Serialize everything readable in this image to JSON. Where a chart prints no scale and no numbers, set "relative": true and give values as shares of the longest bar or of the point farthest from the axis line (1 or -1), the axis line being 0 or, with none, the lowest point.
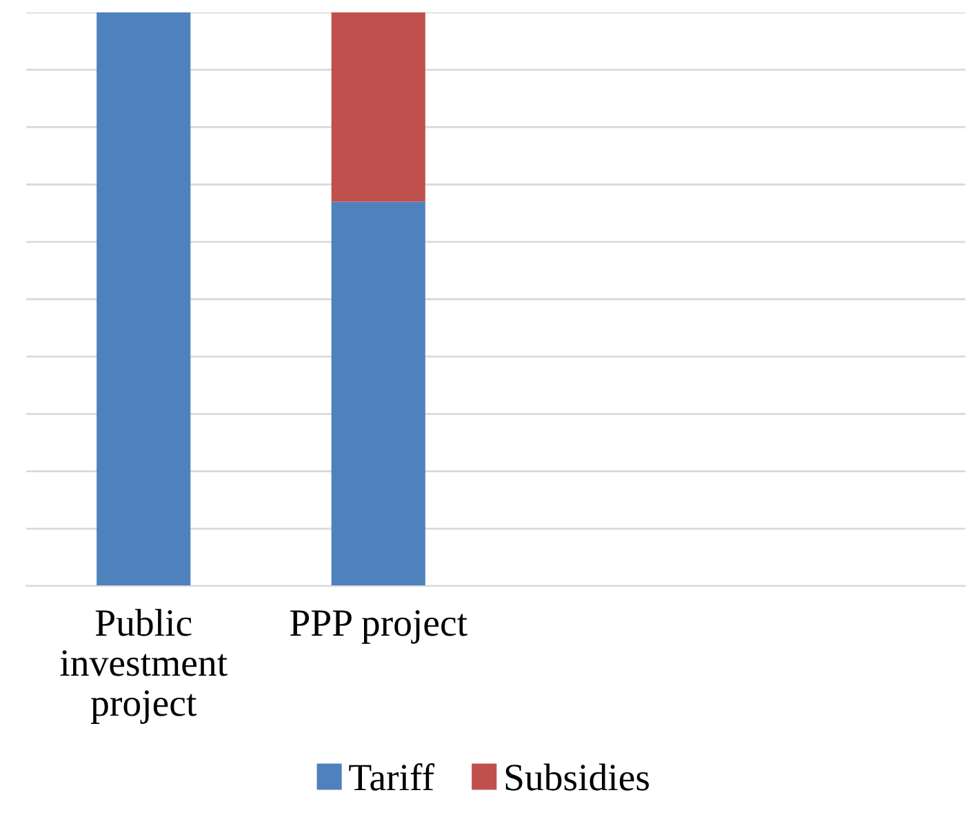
{
  "chart_data": {
    "type": "bar",
    "stacked": true,
    "relative": true,
    "grid": "y",
    "legend": "bottom",
    "categories": [
      "Public investment project",
      "PPP project",
      null,
      null
    ],
    "series": [
      {
        "name": "Tariff",
        "color": "#4f81bd",
        "values": [
          1,
          0.67,
          null,
          null
        ]
      },
      {
        "name": "Subsidies",
        "color": "#c0504d",
        "values": [
          0,
          0.33,
          null,
          null
        ]
      }
    ]
  }
}
